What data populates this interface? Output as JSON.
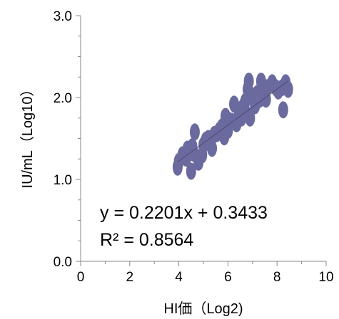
{
  "chart_data": {
    "type": "scatter",
    "xlabel": "HI価（Log2)",
    "ylabel": "IU/mL（Log10）",
    "xlim": [
      0,
      10
    ],
    "ylim": [
      0.0,
      3.0
    ],
    "x_ticks": [
      "0",
      "2",
      "4",
      "6",
      "8",
      "10"
    ],
    "y_ticks": [
      "0.0",
      "1.0",
      "2.0",
      "3.0"
    ],
    "grid": false,
    "marker_color": "#6a6a9e",
    "trendline_color": "#4a4a7a",
    "trendline": {
      "slope": 0.2201,
      "intercept": 0.3433
    },
    "annotations": {
      "equation": "y = 0.2201x + 0.3433",
      "r_squared": "R² = 0.8564"
    },
    "points": [
      {
        "x": 3.95,
        "y": 1.15
      },
      {
        "x": 4.0,
        "y": 1.22
      },
      {
        "x": 4.15,
        "y": 1.3
      },
      {
        "x": 4.3,
        "y": 1.26
      },
      {
        "x": 4.35,
        "y": 1.37
      },
      {
        "x": 4.5,
        "y": 1.1
      },
      {
        "x": 4.55,
        "y": 1.4
      },
      {
        "x": 4.6,
        "y": 1.32
      },
      {
        "x": 4.65,
        "y": 1.58
      },
      {
        "x": 4.8,
        "y": 1.21
      },
      {
        "x": 4.95,
        "y": 1.3
      },
      {
        "x": 5.0,
        "y": 1.42
      },
      {
        "x": 5.1,
        "y": 1.48
      },
      {
        "x": 5.2,
        "y": 1.5
      },
      {
        "x": 5.35,
        "y": 1.38
      },
      {
        "x": 5.45,
        "y": 1.55
      },
      {
        "x": 5.65,
        "y": 1.6
      },
      {
        "x": 5.75,
        "y": 1.64
      },
      {
        "x": 5.85,
        "y": 1.52
      },
      {
        "x": 5.9,
        "y": 1.77
      },
      {
        "x": 6.0,
        "y": 1.6
      },
      {
        "x": 6.05,
        "y": 1.72
      },
      {
        "x": 6.15,
        "y": 1.71
      },
      {
        "x": 6.25,
        "y": 1.92
      },
      {
        "x": 6.35,
        "y": 1.68
      },
      {
        "x": 6.45,
        "y": 1.81
      },
      {
        "x": 6.55,
        "y": 1.75
      },
      {
        "x": 6.6,
        "y": 1.88
      },
      {
        "x": 6.7,
        "y": 1.95
      },
      {
        "x": 6.75,
        "y": 1.8
      },
      {
        "x": 6.8,
        "y": 2.1
      },
      {
        "x": 6.85,
        "y": 2.2
      },
      {
        "x": 6.9,
        "y": 1.75
      },
      {
        "x": 7.0,
        "y": 2.0
      },
      {
        "x": 7.1,
        "y": 1.9
      },
      {
        "x": 7.2,
        "y": 2.05
      },
      {
        "x": 7.3,
        "y": 1.98
      },
      {
        "x": 7.35,
        "y": 2.2
      },
      {
        "x": 7.45,
        "y": 2.1
      },
      {
        "x": 7.55,
        "y": 1.98
      },
      {
        "x": 7.6,
        "y": 2.12
      },
      {
        "x": 7.8,
        "y": 2.18
      },
      {
        "x": 7.95,
        "y": 2.12
      },
      {
        "x": 8.05,
        "y": 2.08
      },
      {
        "x": 8.2,
        "y": 2.12
      },
      {
        "x": 8.25,
        "y": 1.85
      },
      {
        "x": 8.35,
        "y": 2.18
      },
      {
        "x": 8.45,
        "y": 2.1
      },
      {
        "x": 6.95,
        "y": 2.03
      },
      {
        "x": 5.55,
        "y": 1.56
      }
    ]
  }
}
